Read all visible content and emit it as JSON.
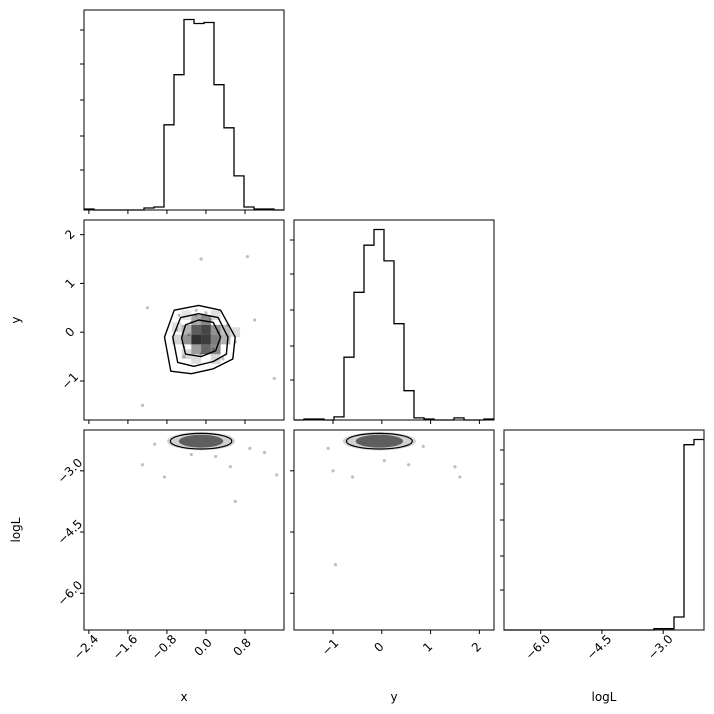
{
  "chart_data": {
    "type": "corner",
    "parameters": [
      "x",
      "y",
      "logL"
    ],
    "axis_labels": {
      "x": "x",
      "y": "y",
      "logL": "logL"
    },
    "ranges": {
      "x": [
        -2.5,
        1.6
      ],
      "y": [
        -1.8,
        2.3
      ],
      "logL": [
        -6.9,
        -2.0
      ]
    },
    "ticks": {
      "x": {
        "values": [
          -2.4,
          -1.6,
          -0.8,
          0.0,
          0.8
        ],
        "labels": [
          "−2.4",
          "−1.6",
          "−0.8",
          "0.0",
          "0.8"
        ]
      },
      "y": {
        "values": [
          -1,
          0,
          1,
          2
        ],
        "labels": [
          "−1",
          "0",
          "1",
          "2"
        ]
      },
      "logL": {
        "values": [
          -6.0,
          -4.5,
          -3.0
        ],
        "labels": [
          "−6.0",
          "−4.5",
          "−3.0"
        ]
      }
    },
    "histograms": {
      "x": {
        "edges": [
          -2.5,
          -2.295,
          -2.09,
          -1.885,
          -1.68,
          -1.475,
          -1.27,
          -1.065,
          -0.86,
          -0.655,
          -0.45,
          -0.245,
          -0.04,
          0.165,
          0.37,
          0.575,
          0.78,
          0.985,
          1.19,
          1.395,
          1.6
        ],
        "counts": [
          1,
          0,
          0,
          0,
          0,
          0,
          2,
          3,
          85,
          135,
          190,
          186,
          187,
          125,
          82,
          34,
          3,
          1,
          1,
          0
        ]
      },
      "y": {
        "edges": [
          -1.8,
          -1.595,
          -1.39,
          -1.185,
          -0.98,
          -0.775,
          -0.57,
          -0.365,
          -0.16,
          0.045,
          0.25,
          0.455,
          0.66,
          0.865,
          1.07,
          1.275,
          1.48,
          1.685,
          1.89,
          2.095,
          2.3
        ],
        "counts": [
          0,
          1,
          1,
          0,
          3,
          60,
          122,
          167,
          182,
          152,
          92,
          28,
          2,
          1,
          0,
          0,
          2,
          0,
          0,
          1
        ]
      },
      "logL": {
        "edges": [
          -6.9,
          -6.655,
          -6.41,
          -6.165,
          -5.92,
          -5.675,
          -5.43,
          -5.185,
          -4.94,
          -4.695,
          -4.45,
          -4.205,
          -3.96,
          -3.715,
          -3.47,
          -3.225,
          -2.98,
          -2.735,
          -2.49,
          -2.245,
          -2.0
        ],
        "counts": [
          0,
          0,
          0,
          0,
          0,
          0,
          0,
          0,
          0,
          0,
          0,
          0,
          0,
          0,
          0,
          1,
          1,
          10,
          142,
          146
        ]
      }
    },
    "samples_2d": {
      "scatter_xy": [
        [
          -0.35,
          -0.05
        ],
        [
          -0.2,
          0.35
        ],
        [
          0.1,
          0.25
        ],
        [
          0.25,
          0.0
        ],
        [
          0.15,
          -0.35
        ],
        [
          -0.1,
          -0.45
        ],
        [
          -0.45,
          -0.3
        ],
        [
          -0.6,
          0.05
        ],
        [
          0.45,
          0.15
        ],
        [
          0.6,
          -0.2
        ],
        [
          -1.2,
          0.5
        ],
        [
          1.0,
          0.25
        ],
        [
          0.35,
          -0.55
        ],
        [
          -0.55,
          0.35
        ],
        [
          0.0,
          0.4
        ],
        [
          -0.3,
          0.2
        ],
        [
          -0.2,
          0.45
        ],
        [
          -0.45,
          -0.5
        ],
        [
          -0.1,
          1.5
        ],
        [
          0.85,
          1.55
        ],
        [
          1.4,
          -0.95
        ],
        [
          -1.3,
          -1.5
        ]
      ],
      "scatter_xlogL": [
        [
          -1.3,
          -2.85
        ],
        [
          -0.85,
          -3.15
        ],
        [
          -0.3,
          -2.6
        ],
        [
          0.2,
          -2.65
        ],
        [
          0.5,
          -2.9
        ],
        [
          0.6,
          -3.75
        ],
        [
          1.2,
          -2.55
        ],
        [
          1.45,
          -3.1
        ],
        [
          -1.05,
          -2.35
        ],
        [
          0.9,
          -2.45
        ]
      ],
      "scatter_ylogL": [
        [
          -1.0,
          -3.0
        ],
        [
          -0.6,
          -3.15
        ],
        [
          0.05,
          -2.75
        ],
        [
          0.55,
          -2.85
        ],
        [
          1.5,
          -2.9
        ],
        [
          1.6,
          -3.15
        ],
        [
          -1.1,
          -2.45
        ],
        [
          -0.95,
          -5.3
        ],
        [
          0.85,
          -2.4
        ]
      ],
      "contours_xy": [
        [
          [
            -0.72,
            -0.8
          ],
          [
            -0.3,
            -0.85
          ],
          [
            0.15,
            -0.75
          ],
          [
            0.55,
            -0.55
          ],
          [
            0.6,
            -0.1
          ],
          [
            0.3,
            0.45
          ],
          [
            -0.15,
            0.55
          ],
          [
            -0.65,
            0.45
          ],
          [
            -0.85,
            -0.1
          ]
        ],
        [
          [
            -0.58,
            -0.62
          ],
          [
            -0.25,
            -0.7
          ],
          [
            0.15,
            -0.6
          ],
          [
            0.42,
            -0.45
          ],
          [
            0.45,
            -0.1
          ],
          [
            0.25,
            0.3
          ],
          [
            -0.15,
            0.38
          ],
          [
            -0.52,
            0.3
          ],
          [
            -0.68,
            -0.1
          ]
        ],
        [
          [
            -0.42,
            -0.45
          ],
          [
            -0.1,
            -0.5
          ],
          [
            0.2,
            -0.38
          ],
          [
            0.3,
            -0.1
          ],
          [
            0.15,
            0.2
          ],
          [
            -0.15,
            0.25
          ],
          [
            -0.42,
            0.15
          ],
          [
            -0.5,
            -0.12
          ]
        ]
      ],
      "density_cells_xy": [
        {
          "x": -0.3,
          "y": -0.25,
          "w": 0.2,
          "h": 0.2,
          "shade": 0.95
        },
        {
          "x": -0.1,
          "y": -0.25,
          "w": 0.2,
          "h": 0.2,
          "shade": 0.9
        },
        {
          "x": -0.3,
          "y": -0.05,
          "w": 0.2,
          "h": 0.2,
          "shade": 0.75
        },
        {
          "x": -0.1,
          "y": -0.05,
          "w": 0.2,
          "h": 0.2,
          "shade": 0.85
        },
        {
          "x": 0.1,
          "y": -0.25,
          "w": 0.2,
          "h": 0.2,
          "shade": 0.6
        },
        {
          "x": 0.1,
          "y": -0.45,
          "w": 0.2,
          "h": 0.2,
          "shade": 0.55
        },
        {
          "x": -0.1,
          "y": -0.45,
          "w": 0.2,
          "h": 0.2,
          "shade": 0.7
        },
        {
          "x": -0.3,
          "y": -0.45,
          "w": 0.2,
          "h": 0.2,
          "shade": 0.45
        },
        {
          "x": -0.5,
          "y": -0.25,
          "w": 0.2,
          "h": 0.2,
          "shade": 0.5
        },
        {
          "x": -0.5,
          "y": -0.05,
          "w": 0.2,
          "h": 0.2,
          "shade": 0.35
        },
        {
          "x": 0.1,
          "y": -0.05,
          "w": 0.2,
          "h": 0.2,
          "shade": 0.5
        },
        {
          "x": -0.1,
          "y": 0.15,
          "w": 0.2,
          "h": 0.2,
          "shade": 0.55
        },
        {
          "x": -0.3,
          "y": 0.15,
          "w": 0.2,
          "h": 0.2,
          "shade": 0.4
        },
        {
          "x": 0.3,
          "y": -0.25,
          "w": 0.2,
          "h": 0.2,
          "shade": 0.35
        },
        {
          "x": 0.3,
          "y": -0.05,
          "w": 0.2,
          "h": 0.2,
          "shade": 0.3
        },
        {
          "x": -0.7,
          "y": -0.25,
          "w": 0.2,
          "h": 0.2,
          "shade": 0.2
        },
        {
          "x": -0.7,
          "y": 0.0,
          "w": 0.2,
          "h": 0.2,
          "shade": 0.15
        },
        {
          "x": 0.5,
          "y": -0.1,
          "w": 0.2,
          "h": 0.2,
          "shade": 0.15
        },
        {
          "x": -0.5,
          "y": -0.55,
          "w": 0.2,
          "h": 0.2,
          "shade": 0.18
        },
        {
          "x": 0.1,
          "y": -0.65,
          "w": 0.2,
          "h": 0.2,
          "shade": 0.18
        },
        {
          "x": -0.3,
          "y": -0.65,
          "w": 0.2,
          "h": 0.2,
          "shade": 0.15
        },
        {
          "x": -0.5,
          "y": 0.25,
          "w": 0.2,
          "h": 0.2,
          "shade": 0.12
        },
        {
          "x": 0.1,
          "y": 0.25,
          "w": 0.2,
          "h": 0.2,
          "shade": 0.15
        }
      ],
      "band_xlogL": {
        "x": [
          -0.8,
          0.6
        ],
        "logL": [
          -2.45,
          -2.0
        ]
      },
      "band_ylogL": {
        "y": [
          -0.8,
          0.7
        ],
        "logL": [
          -2.45,
          -2.0
        ]
      }
    },
    "colors": {
      "line": "#000000",
      "density": "#333333",
      "frame": "#000000"
    }
  }
}
